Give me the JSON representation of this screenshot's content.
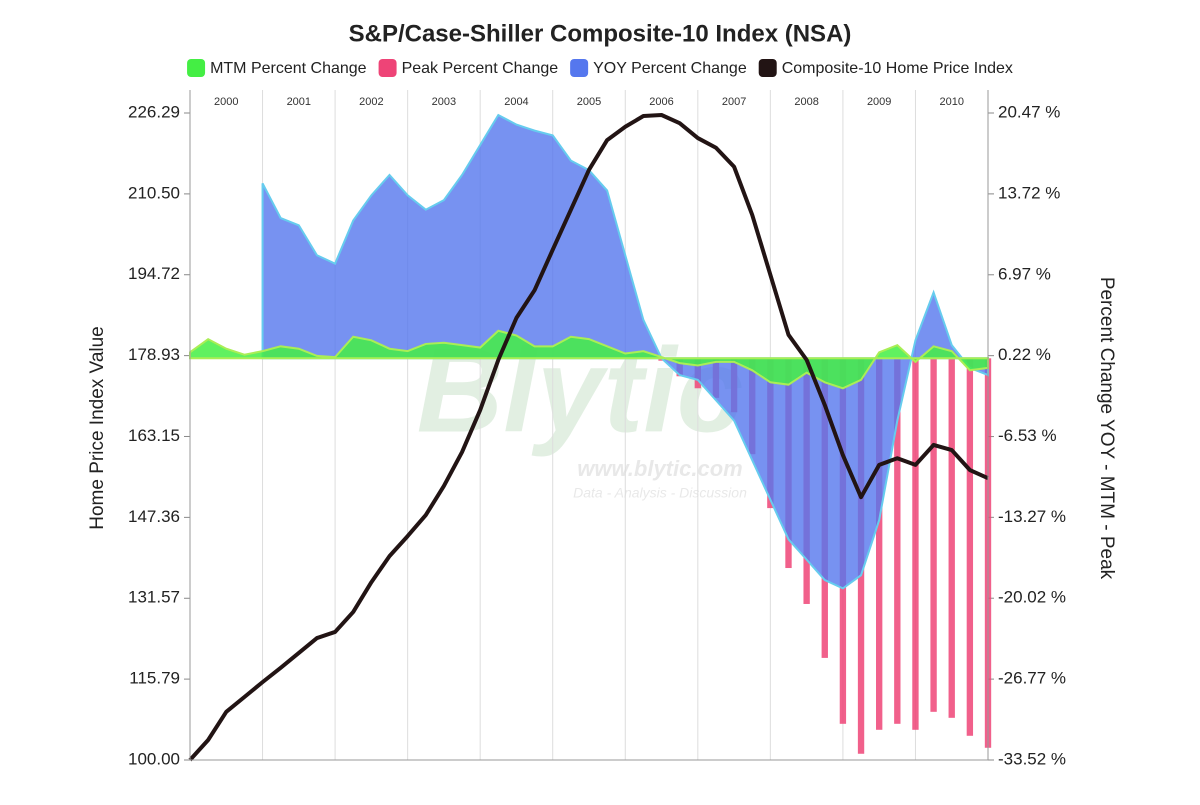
{
  "chart_data": {
    "type": "line",
    "title": "S&P/Case-Shiller Composite-10 Index (NSA)",
    "y_label": "Home Price Index Value",
    "y2_label": "Percent Change YOY - MTM - Peak",
    "watermark": [
      "Blytic",
      "www.blytic.com",
      "Data - Analysis - Discussion"
    ],
    "x": [
      2000.0,
      2000.25,
      2000.5,
      2000.75,
      2001.0,
      2001.25,
      2001.5,
      2001.75,
      2002.0,
      2002.25,
      2002.5,
      2002.75,
      2003.0,
      2003.25,
      2003.5,
      2003.75,
      2004.0,
      2004.25,
      2004.5,
      2004.75,
      2005.0,
      2005.25,
      2005.5,
      2005.75,
      2006.0,
      2006.25,
      2006.5,
      2006.75,
      2007.0,
      2007.25,
      2007.5,
      2007.75,
      2008.0,
      2008.25,
      2008.5,
      2008.75,
      2009.0,
      2009.25,
      2009.5,
      2009.75,
      2010.0,
      2010.25,
      2010.5,
      2010.75,
      2011.0
    ],
    "xlim": [
      2000,
      2011
    ],
    "xticks": [
      2000,
      2001,
      2002,
      2003,
      2004,
      2005,
      2006,
      2007,
      2008,
      2009,
      2010
    ],
    "ylim": [
      100,
      226.29
    ],
    "yticks": [
      {
        "value": 100,
        "label": "100.00"
      },
      115.79,
      131.57,
      147.36,
      163.15,
      178.93,
      194.72,
      {
        "value": 210.5,
        "label": "210.50"
      },
      226.29
    ],
    "y2lim": [
      -33.52,
      20.47
    ],
    "y2ticks": [
      {
        "value": -33.52,
        "label": "-33.52 %"
      },
      {
        "value": -26.77,
        "label": "-26.77 %"
      },
      {
        "value": -20.02,
        "label": "-20.02 %"
      },
      {
        "value": -13.27,
        "label": "-13.27 %"
      },
      {
        "value": -6.53,
        "label": "-6.53 %"
      },
      {
        "value": 0.22,
        "label": "0.22 %"
      },
      {
        "value": 6.97,
        "label": "6.97 %"
      },
      {
        "value": 13.72,
        "label": "13.72 %"
      },
      {
        "value": 20.47,
        "label": "20.47 %"
      }
    ],
    "grid": true,
    "series": [
      {
        "name": "MTM Percent Change",
        "color": "#44ee44",
        "type": "area",
        "axis": "y2",
        "values": [
          0.5,
          1.6,
          0.8,
          0.3,
          0.6,
          1.0,
          0.8,
          0.2,
          0.1,
          1.8,
          1.5,
          0.8,
          0.6,
          1.2,
          1.3,
          1.1,
          0.9,
          2.3,
          1.9,
          1.0,
          1.0,
          1.8,
          1.6,
          1.0,
          0.4,
          0.6,
          0.1,
          -0.4,
          -0.6,
          -0.3,
          -0.3,
          -1.0,
          -2.0,
          -2.2,
          -1.2,
          -2.0,
          -2.5,
          -1.8,
          0.5,
          1.1,
          -0.3,
          1.0,
          0.6,
          -1.0,
          -0.8
        ]
      },
      {
        "name": "Peak Percent Change",
        "color": "#ee4477",
        "type": "bar",
        "axis": "y2",
        "values": [
          0,
          0,
          0,
          0,
          0,
          0,
          0,
          0,
          0,
          0,
          0,
          0,
          0,
          0,
          0,
          0,
          0,
          0,
          0,
          0,
          0,
          0,
          0,
          0,
          0,
          0,
          -0.2,
          -1.5,
          -2.5,
          -3.3,
          -4.5,
          -8,
          -12.5,
          -17.5,
          -20.5,
          -25,
          -30.5,
          -33,
          -31,
          -30.5,
          -31,
          -29.5,
          -30,
          -31.5,
          -32.5
        ]
      },
      {
        "name": "YOY Percent Change",
        "color": "#5577ee",
        "type": "area",
        "axis": "y2",
        "values": [
          null,
          null,
          null,
          null,
          14.6,
          11.7,
          11.1,
          8.6,
          7.9,
          11.5,
          13.6,
          15.3,
          13.6,
          12.4,
          13.2,
          15.3,
          17.8,
          20.3,
          19.5,
          19.0,
          18.6,
          16.5,
          15.7,
          14.0,
          8.6,
          3.2,
          0.0,
          -1.4,
          -1.8,
          -3.5,
          -5.2,
          -8.5,
          -11.8,
          -15.1,
          -16.8,
          -18.5,
          -19.2,
          -18.1,
          -13.5,
          -5.2,
          1.5,
          5.5,
          1.1,
          -0.8,
          -1.4
        ]
      },
      {
        "name": "Composite-10 Home Price Index",
        "color": "#221414",
        "type": "line",
        "values": [
          100,
          103.9,
          109.4,
          112.3,
          115.2,
          118,
          120.9,
          123.8,
          125,
          128.9,
          134.7,
          139.8,
          143.7,
          147.8,
          153.5,
          160.1,
          168.3,
          178.1,
          186.3,
          191.7,
          199.6,
          207.4,
          215.2,
          221,
          223.6,
          225.7,
          225.9,
          224.3,
          221.4,
          219.5,
          215.8,
          206.4,
          194.7,
          183,
          178.1,
          169.3,
          159.5,
          151.3,
          157.6,
          158.9,
          157.6,
          161.5,
          160.5,
          156.6,
          155
        ]
      }
    ]
  }
}
